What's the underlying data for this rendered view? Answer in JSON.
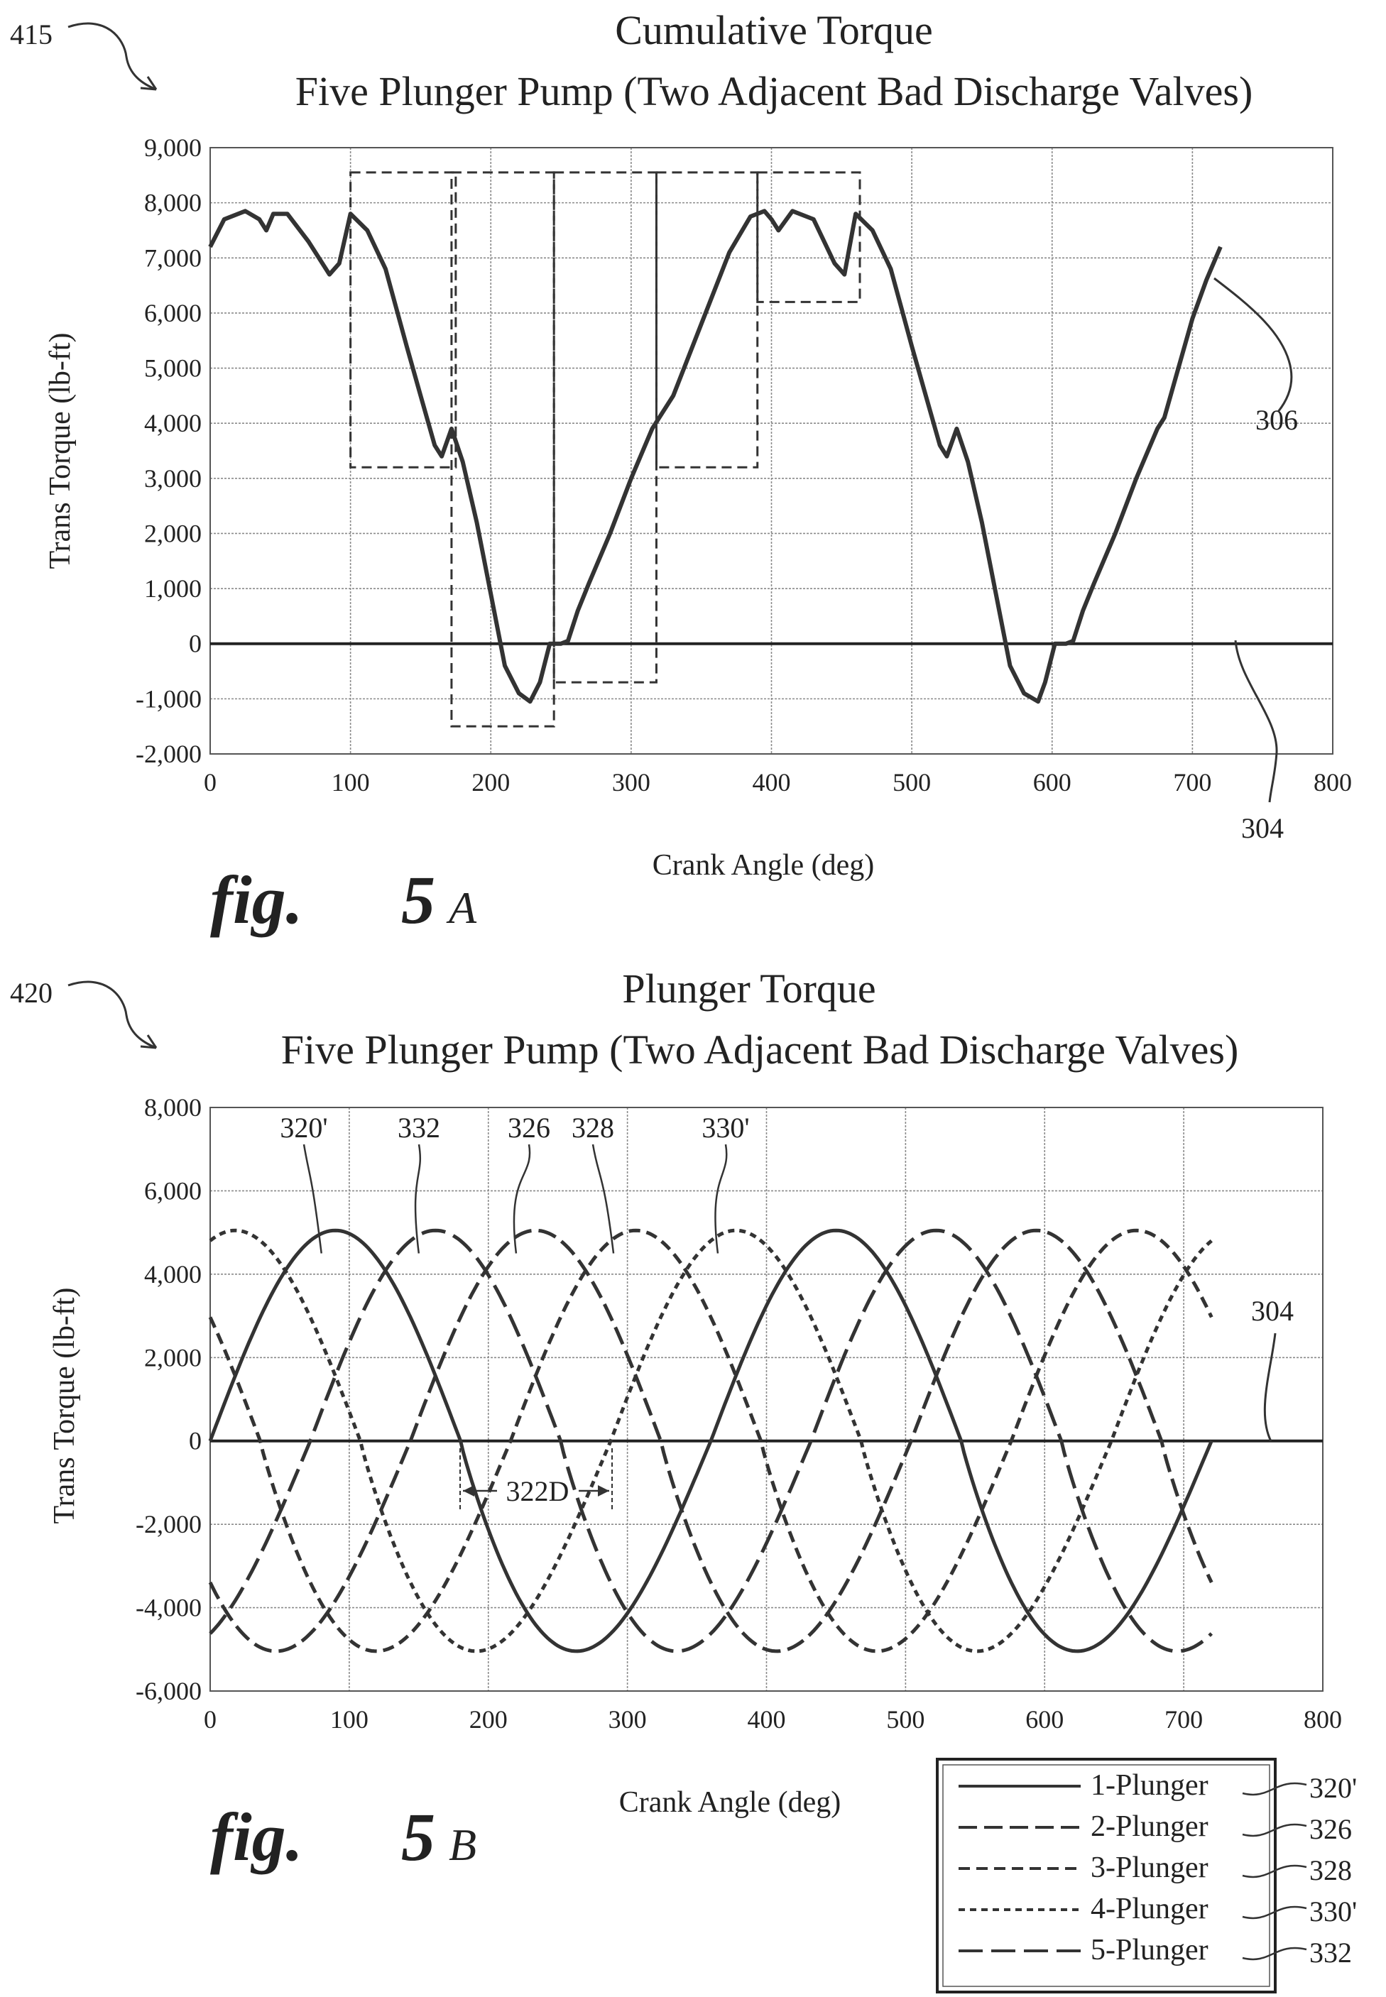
{
  "figure_a": {
    "ref": "415",
    "title_line1": "Cumulative Torque",
    "title_line2": "Five Plunger Pump (Two Adjacent Bad Discharge Valves)",
    "fig_label_script": "fig.",
    "fig_label_num": "5",
    "fig_label_letter": "A",
    "callout_curve": "306",
    "callout_zero": "304"
  },
  "figure_b": {
    "ref": "420",
    "title_line1": "Plunger Torque",
    "title_line2": "Five Plunger Pump (Two Adjacent Bad Discharge Valves)",
    "fig_label_script": "fig.",
    "fig_label_num": "5",
    "fig_label_letter": "B",
    "callouts": [
      "320'",
      "332",
      "326",
      "328",
      "330'"
    ],
    "callout_zero": "304",
    "dimension_label": "322D"
  },
  "chart_data": [
    {
      "type": "line",
      "title": "Cumulative Torque",
      "subtitle": "Five Plunger Pump (Two Adjacent Bad Discharge Valves)",
      "xlabel": "Crank Angle (deg)",
      "ylabel": "Trans Torque (lb-ft)",
      "xlim": [
        0,
        800
      ],
      "ylim": [
        -2000,
        9000
      ],
      "xticks": [
        "0",
        "100",
        "200",
        "300",
        "400",
        "500",
        "600",
        "700",
        "800"
      ],
      "yticks": [
        "9,000",
        "8,000",
        "7,000",
        "6,000",
        "5,000",
        "4,000",
        "3,000",
        "2,000",
        "1,000",
        "0",
        "-1,000",
        "-2,000"
      ],
      "grid": true,
      "series": [
        {
          "x": [
            0,
            10,
            25,
            35,
            40,
            45,
            55,
            70,
            85,
            92,
            100,
            112,
            125,
            140,
            150,
            160,
            165,
            172,
            180,
            190,
            200,
            210,
            220,
            228,
            235,
            242,
            250,
            255,
            262,
            270,
            285,
            300,
            315,
            320,
            330,
            350,
            370,
            385,
            395,
            400,
            405,
            415,
            430,
            445,
            452,
            460,
            472,
            485,
            500,
            510,
            520,
            525,
            532,
            540,
            550,
            560,
            570,
            580,
            590,
            595,
            602,
            610,
            615,
            622,
            630,
            645,
            660,
            675,
            680,
            690,
            700,
            710,
            720
          ],
          "y": [
            7200,
            7700,
            7850,
            7700,
            7500,
            7800,
            7800,
            7300,
            6700,
            6900,
            7800,
            7500,
            6800,
            5400,
            4500,
            3600,
            3400,
            3900,
            3300,
            2200,
            900,
            -400,
            -900,
            -1050,
            -700,
            0,
            0,
            50,
            600,
            1100,
            2000,
            3000,
            3900,
            4100,
            4500,
            5800,
            7100,
            7750,
            7850,
            7700,
            7500,
            7850,
            7700,
            6900,
            6700,
            7800,
            7500,
            6800,
            5400,
            4500,
            3600,
            3400,
            3900,
            3300,
            2200,
            900,
            -400,
            -900,
            -1050,
            -700,
            0,
            0,
            50,
            600,
            1100,
            2000,
            3000,
            3900,
            4100,
            5000,
            5900,
            6600,
            7200
          ]
        }
      ],
      "boxes": [
        {
          "x": [
            100,
            175
          ],
          "y": [
            3200,
            8550
          ]
        },
        {
          "x": [
            172,
            245
          ],
          "y": [
            -1500,
            8550
          ]
        },
        {
          "x": [
            245,
            318
          ],
          "y": [
            -700,
            8550
          ]
        },
        {
          "x": [
            318,
            390
          ],
          "y": [
            3200,
            8550
          ]
        },
        {
          "x": [
            390,
            463
          ],
          "y": [
            6200,
            8550
          ]
        }
      ]
    },
    {
      "type": "line",
      "title": "Plunger Torque",
      "subtitle": "Five Plunger Pump (Two Adjacent Bad Discharge Valves)",
      "xlabel": "Crank Angle (deg)",
      "ylabel": "Trans Torque (lb-ft)",
      "xlim": [
        0,
        800
      ],
      "ylim": [
        -6000,
        8000
      ],
      "xticks": [
        "0",
        "100",
        "200",
        "300",
        "400",
        "500",
        "600",
        "700",
        "800"
      ],
      "yticks": [
        "8,000",
        "6,000",
        "4,000",
        "2,000",
        "0",
        "-2,000",
        "-4,000",
        "-6,000"
      ],
      "grid": true,
      "legend_position": "bottom-right",
      "amplitude": 5050,
      "series": [
        {
          "name": "1-Plunger",
          "phase": 0,
          "dash": "solid"
        },
        {
          "name": "2-Plunger",
          "phase": 144,
          "dash": "long-dash"
        },
        {
          "name": "3-Plunger",
          "phase": 216,
          "dash": "medium-dash"
        },
        {
          "name": "4-Plunger",
          "phase": 288,
          "dash": "short-dash"
        },
        {
          "name": "5-Plunger",
          "phase": 72,
          "dash": "dash-long"
        }
      ],
      "legend_refs": [
        "320'",
        "326",
        "328",
        "330'",
        "332"
      ]
    }
  ]
}
